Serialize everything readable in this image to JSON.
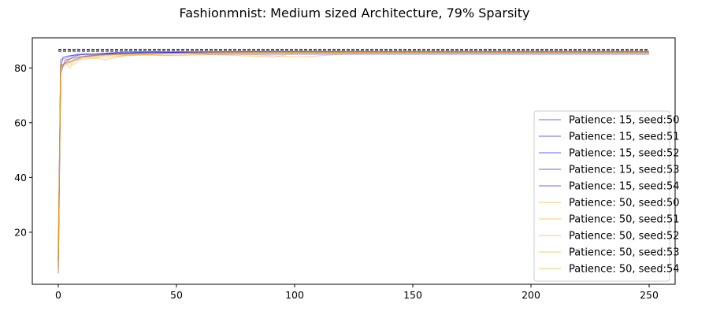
{
  "chart_data": {
    "type": "line",
    "title": "Fashionmnist: Medium sized Architecture, 79% Sparsity",
    "xlabel": "",
    "ylabel": "",
    "xlim": [
      -11,
      261
    ],
    "ylim": [
      1,
      91
    ],
    "xticks": [
      0,
      50,
      100,
      150,
      200,
      250
    ],
    "yticks": [
      20,
      40,
      60,
      80
    ],
    "grid": false,
    "legend_position": "center-right",
    "reference_lines": [
      {
        "style": "dashed",
        "color": "#000000",
        "y": 86.6,
        "x": [
          0,
          250
        ]
      },
      {
        "style": "dashed",
        "color": "#808080",
        "y": 86.0,
        "x": [
          0,
          250
        ]
      }
    ],
    "series": [
      {
        "name": "Patience: 15, seed:50",
        "color": "#0000ff",
        "opacity": 0.4,
        "points": [
          [
            0,
            5
          ],
          [
            1,
            80
          ],
          [
            3,
            82
          ],
          [
            6,
            84
          ],
          [
            10,
            85
          ],
          [
            20,
            85
          ],
          [
            40,
            86
          ],
          [
            65,
            85
          ],
          [
            250,
            85
          ]
        ]
      },
      {
        "name": "Patience: 15, seed:51",
        "color": "#0000ff",
        "opacity": 0.4,
        "points": [
          [
            0,
            9
          ],
          [
            1,
            83
          ],
          [
            4,
            84
          ],
          [
            8,
            85
          ],
          [
            15,
            85
          ],
          [
            30,
            86
          ],
          [
            70,
            85.5
          ],
          [
            250,
            85.5
          ]
        ]
      },
      {
        "name": "Patience: 15, seed:52",
        "color": "#0000ff",
        "opacity": 0.4,
        "points": [
          [
            0,
            12
          ],
          [
            1,
            80
          ],
          [
            2,
            84
          ],
          [
            5,
            84.5
          ],
          [
            12,
            85
          ],
          [
            25,
            85.5
          ],
          [
            60,
            86
          ],
          [
            250,
            86
          ]
        ]
      },
      {
        "name": "Patience: 15, seed:53",
        "color": "#0000ff",
        "opacity": 0.4,
        "points": [
          [
            0,
            7
          ],
          [
            1,
            78
          ],
          [
            3,
            83
          ],
          [
            9,
            84
          ],
          [
            18,
            85
          ],
          [
            35,
            85.5
          ],
          [
            80,
            86
          ],
          [
            250,
            86
          ]
        ]
      },
      {
        "name": "Patience: 15, seed:54",
        "color": "#0000ff",
        "opacity": 0.4,
        "points": [
          [
            0,
            10
          ],
          [
            1,
            81
          ],
          [
            4,
            82
          ],
          [
            10,
            84
          ],
          [
            22,
            85
          ],
          [
            45,
            85.5
          ],
          [
            90,
            85.8
          ],
          [
            250,
            85.8
          ]
        ]
      },
      {
        "name": "Patience: 50, seed:50",
        "color": "#ffa500",
        "opacity": 0.4,
        "points": [
          [
            0,
            6
          ],
          [
            1,
            79
          ],
          [
            3,
            82
          ],
          [
            5,
            80
          ],
          [
            7,
            84
          ],
          [
            12,
            84
          ],
          [
            20,
            83
          ],
          [
            30,
            85
          ],
          [
            45,
            84.5
          ],
          [
            60,
            85
          ],
          [
            92,
            84
          ],
          [
            100,
            85.5
          ],
          [
            250,
            85.5
          ]
        ]
      },
      {
        "name": "Patience: 50, seed:51",
        "color": "#ffa500",
        "opacity": 0.4,
        "points": [
          [
            0,
            14
          ],
          [
            1,
            80
          ],
          [
            4,
            83
          ],
          [
            6,
            81
          ],
          [
            10,
            84
          ],
          [
            25,
            85
          ],
          [
            50,
            84.5
          ],
          [
            75,
            85
          ],
          [
            103,
            84
          ],
          [
            130,
            85.5
          ],
          [
            250,
            85.5
          ]
        ]
      },
      {
        "name": "Patience: 50, seed:52",
        "color": "#ffa500",
        "opacity": 0.4,
        "points": [
          [
            0,
            8
          ],
          [
            1,
            82
          ],
          [
            3,
            83
          ],
          [
            8,
            84
          ],
          [
            15,
            85
          ],
          [
            30,
            84.5
          ],
          [
            55,
            85.5
          ],
          [
            110,
            85.8
          ],
          [
            250,
            85.8
          ]
        ]
      },
      {
        "name": "Patience: 50, seed:53",
        "color": "#ffa500",
        "opacity": 0.4,
        "points": [
          [
            0,
            11
          ],
          [
            1,
            81
          ],
          [
            4,
            82
          ],
          [
            9,
            83
          ],
          [
            20,
            84
          ],
          [
            40,
            85
          ],
          [
            70,
            85.5
          ],
          [
            150,
            86
          ],
          [
            250,
            86
          ]
        ]
      },
      {
        "name": "Patience: 50, seed:54",
        "color": "#ffa500",
        "opacity": 0.4,
        "points": [
          [
            0,
            5
          ],
          [
            1,
            80
          ],
          [
            3,
            81
          ],
          [
            7,
            83
          ],
          [
            14,
            84
          ],
          [
            28,
            85
          ],
          [
            65,
            85.5
          ],
          [
            160,
            85.8
          ],
          [
            250,
            85.8
          ]
        ]
      }
    ]
  }
}
